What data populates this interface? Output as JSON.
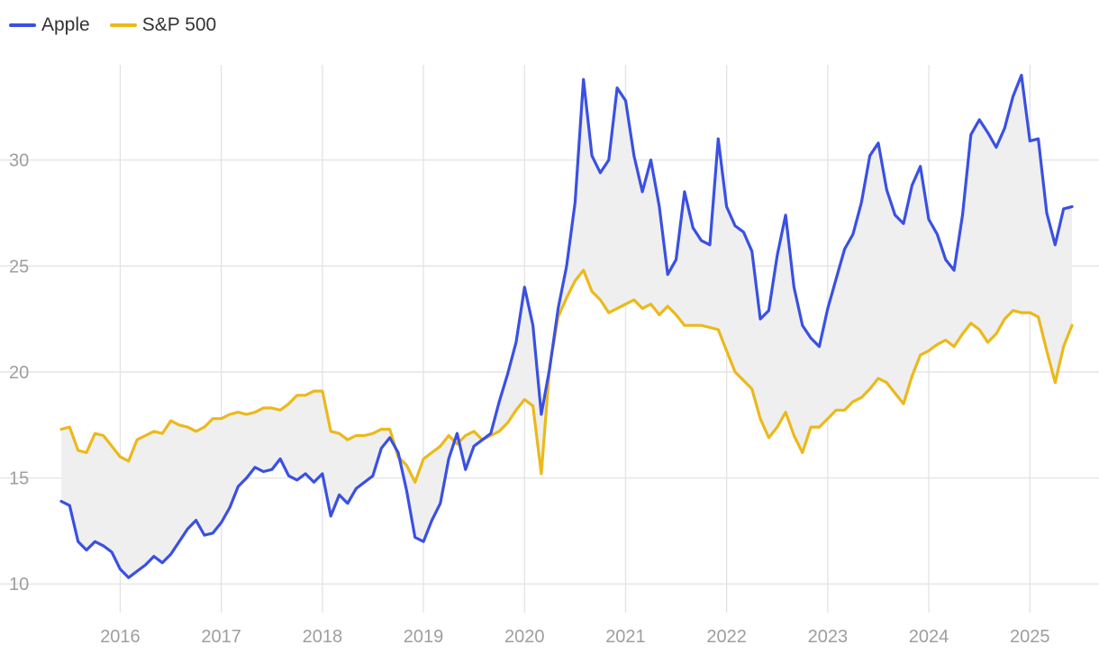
{
  "chart_data": {
    "type": "line",
    "title": "",
    "xlabel": "",
    "ylabel": "",
    "legend_position": "top-left",
    "grid": true,
    "x_ticks": [
      "2016",
      "2017",
      "2018",
      "2019",
      "2020",
      "2021",
      "2022",
      "2023",
      "2024",
      "2025"
    ],
    "y_ticks": [
      10,
      15,
      20,
      25,
      30
    ],
    "xlim": [
      "2015-06",
      "2025-06"
    ],
    "ylim": [
      9.5,
      35
    ],
    "fill_between_series": true,
    "fill_color": "#efefef",
    "series": [
      {
        "name": "Apple",
        "color": "#3a50e3",
        "points": [
          [
            "2015-06",
            13.9
          ],
          [
            "2015-07",
            13.7
          ],
          [
            "2015-08",
            12.0
          ],
          [
            "2015-09",
            11.6
          ],
          [
            "2015-10",
            12.0
          ],
          [
            "2015-11",
            11.8
          ],
          [
            "2015-12",
            11.5
          ],
          [
            "2016-01",
            10.7
          ],
          [
            "2016-02",
            10.3
          ],
          [
            "2016-03",
            10.6
          ],
          [
            "2016-04",
            10.9
          ],
          [
            "2016-05",
            11.3
          ],
          [
            "2016-06",
            11.0
          ],
          [
            "2016-07",
            11.4
          ],
          [
            "2016-08",
            12.0
          ],
          [
            "2016-09",
            12.6
          ],
          [
            "2016-10",
            13.0
          ],
          [
            "2016-11",
            12.3
          ],
          [
            "2016-12",
            12.4
          ],
          [
            "2017-01",
            12.9
          ],
          [
            "2017-02",
            13.6
          ],
          [
            "2017-03",
            14.6
          ],
          [
            "2017-04",
            15.0
          ],
          [
            "2017-05",
            15.5
          ],
          [
            "2017-06",
            15.3
          ],
          [
            "2017-07",
            15.4
          ],
          [
            "2017-08",
            15.9
          ],
          [
            "2017-09",
            15.1
          ],
          [
            "2017-10",
            14.9
          ],
          [
            "2017-11",
            15.2
          ],
          [
            "2017-12",
            14.8
          ],
          [
            "2018-01",
            15.2
          ],
          [
            "2018-02",
            13.2
          ],
          [
            "2018-03",
            14.2
          ],
          [
            "2018-04",
            13.8
          ],
          [
            "2018-05",
            14.5
          ],
          [
            "2018-06",
            14.8
          ],
          [
            "2018-07",
            15.1
          ],
          [
            "2018-08",
            16.4
          ],
          [
            "2018-09",
            16.9
          ],
          [
            "2018-10",
            16.2
          ],
          [
            "2018-11",
            14.4
          ],
          [
            "2018-12",
            12.2
          ],
          [
            "2019-01",
            12.0
          ],
          [
            "2019-02",
            13.0
          ],
          [
            "2019-03",
            13.8
          ],
          [
            "2019-04",
            15.9
          ],
          [
            "2019-05",
            17.1
          ],
          [
            "2019-06",
            15.4
          ],
          [
            "2019-07",
            16.5
          ],
          [
            "2019-08",
            16.8
          ],
          [
            "2019-09",
            17.1
          ],
          [
            "2019-10",
            18.6
          ],
          [
            "2019-11",
            19.9
          ],
          [
            "2019-12",
            21.4
          ],
          [
            "2020-01",
            24.0
          ],
          [
            "2020-02",
            22.2
          ],
          [
            "2020-03",
            18.0
          ],
          [
            "2020-04",
            20.2
          ],
          [
            "2020-05",
            23.0
          ],
          [
            "2020-06",
            25.0
          ],
          [
            "2020-07",
            28.0
          ],
          [
            "2020-08",
            33.8
          ],
          [
            "2020-09",
            30.2
          ],
          [
            "2020-10",
            29.4
          ],
          [
            "2020-11",
            30.0
          ],
          [
            "2020-12",
            33.4
          ],
          [
            "2021-01",
            32.8
          ],
          [
            "2021-02",
            30.2
          ],
          [
            "2021-03",
            28.5
          ],
          [
            "2021-04",
            30.0
          ],
          [
            "2021-05",
            27.8
          ],
          [
            "2021-06",
            24.6
          ],
          [
            "2021-07",
            25.3
          ],
          [
            "2021-08",
            28.5
          ],
          [
            "2021-09",
            26.8
          ],
          [
            "2021-10",
            26.2
          ],
          [
            "2021-11",
            26.0
          ],
          [
            "2021-12",
            31.0
          ],
          [
            "2022-01",
            27.8
          ],
          [
            "2022-02",
            26.9
          ],
          [
            "2022-03",
            26.6
          ],
          [
            "2022-04",
            25.7
          ],
          [
            "2022-05",
            22.5
          ],
          [
            "2022-06",
            22.9
          ],
          [
            "2022-07",
            25.5
          ],
          [
            "2022-08",
            27.4
          ],
          [
            "2022-09",
            24.0
          ],
          [
            "2022-10",
            22.2
          ],
          [
            "2022-11",
            21.6
          ],
          [
            "2022-12",
            21.2
          ],
          [
            "2023-01",
            23.0
          ],
          [
            "2023-02",
            24.4
          ],
          [
            "2023-03",
            25.8
          ],
          [
            "2023-04",
            26.5
          ],
          [
            "2023-05",
            28.0
          ],
          [
            "2023-06",
            30.2
          ],
          [
            "2023-07",
            30.8
          ],
          [
            "2023-08",
            28.6
          ],
          [
            "2023-09",
            27.4
          ],
          [
            "2023-10",
            27.0
          ],
          [
            "2023-11",
            28.8
          ],
          [
            "2023-12",
            29.7
          ],
          [
            "2024-01",
            27.2
          ],
          [
            "2024-02",
            26.5
          ],
          [
            "2024-03",
            25.3
          ],
          [
            "2024-04",
            24.8
          ],
          [
            "2024-05",
            27.4
          ],
          [
            "2024-06",
            31.2
          ],
          [
            "2024-07",
            31.9
          ],
          [
            "2024-08",
            31.3
          ],
          [
            "2024-09",
            30.6
          ],
          [
            "2024-10",
            31.5
          ],
          [
            "2024-11",
            33.0
          ],
          [
            "2024-12",
            34.0
          ],
          [
            "2025-01",
            30.9
          ],
          [
            "2025-02",
            31.0
          ],
          [
            "2025-03",
            27.5
          ],
          [
            "2025-04",
            26.0
          ],
          [
            "2025-05",
            27.7
          ],
          [
            "2025-06",
            27.8
          ]
        ]
      },
      {
        "name": "S&P 500",
        "color": "#ebb91b",
        "points": [
          [
            "2015-06",
            17.3
          ],
          [
            "2015-07",
            17.4
          ],
          [
            "2015-08",
            16.3
          ],
          [
            "2015-09",
            16.2
          ],
          [
            "2015-10",
            17.1
          ],
          [
            "2015-11",
            17.0
          ],
          [
            "2015-12",
            16.5
          ],
          [
            "2016-01",
            16.0
          ],
          [
            "2016-02",
            15.8
          ],
          [
            "2016-03",
            16.8
          ],
          [
            "2016-04",
            17.0
          ],
          [
            "2016-05",
            17.2
          ],
          [
            "2016-06",
            17.1
          ],
          [
            "2016-07",
            17.7
          ],
          [
            "2016-08",
            17.5
          ],
          [
            "2016-09",
            17.4
          ],
          [
            "2016-10",
            17.2
          ],
          [
            "2016-11",
            17.4
          ],
          [
            "2016-12",
            17.8
          ],
          [
            "2017-01",
            17.8
          ],
          [
            "2017-02",
            18.0
          ],
          [
            "2017-03",
            18.1
          ],
          [
            "2017-04",
            18.0
          ],
          [
            "2017-05",
            18.1
          ],
          [
            "2017-06",
            18.3
          ],
          [
            "2017-07",
            18.3
          ],
          [
            "2017-08",
            18.2
          ],
          [
            "2017-09",
            18.5
          ],
          [
            "2017-10",
            18.9
          ],
          [
            "2017-11",
            18.9
          ],
          [
            "2017-12",
            19.1
          ],
          [
            "2018-01",
            19.1
          ],
          [
            "2018-02",
            17.2
          ],
          [
            "2018-03",
            17.1
          ],
          [
            "2018-04",
            16.8
          ],
          [
            "2018-05",
            17.0
          ],
          [
            "2018-06",
            17.0
          ],
          [
            "2018-07",
            17.1
          ],
          [
            "2018-08",
            17.3
          ],
          [
            "2018-09",
            17.3
          ],
          [
            "2018-10",
            16.0
          ],
          [
            "2018-11",
            15.6
          ],
          [
            "2018-12",
            14.8
          ],
          [
            "2019-01",
            15.9
          ],
          [
            "2019-02",
            16.2
          ],
          [
            "2019-03",
            16.5
          ],
          [
            "2019-04",
            17.0
          ],
          [
            "2019-05",
            16.6
          ],
          [
            "2019-06",
            17.0
          ],
          [
            "2019-07",
            17.2
          ],
          [
            "2019-08",
            16.8
          ],
          [
            "2019-09",
            17.0
          ],
          [
            "2019-10",
            17.2
          ],
          [
            "2019-11",
            17.6
          ],
          [
            "2019-12",
            18.2
          ],
          [
            "2020-01",
            18.7
          ],
          [
            "2020-02",
            18.4
          ],
          [
            "2020-03",
            15.2
          ],
          [
            "2020-04",
            20.3
          ],
          [
            "2020-05",
            22.6
          ],
          [
            "2020-06",
            23.5
          ],
          [
            "2020-07",
            24.3
          ],
          [
            "2020-08",
            24.8
          ],
          [
            "2020-09",
            23.8
          ],
          [
            "2020-10",
            23.4
          ],
          [
            "2020-11",
            22.8
          ],
          [
            "2020-12",
            23.0
          ],
          [
            "2021-01",
            23.2
          ],
          [
            "2021-02",
            23.4
          ],
          [
            "2021-03",
            23.0
          ],
          [
            "2021-04",
            23.2
          ],
          [
            "2021-05",
            22.7
          ],
          [
            "2021-06",
            23.1
          ],
          [
            "2021-07",
            22.7
          ],
          [
            "2021-08",
            22.2
          ],
          [
            "2021-09",
            22.2
          ],
          [
            "2021-10",
            22.2
          ],
          [
            "2021-11",
            22.1
          ],
          [
            "2021-12",
            22.0
          ],
          [
            "2022-01",
            21.0
          ],
          [
            "2022-02",
            20.0
          ],
          [
            "2022-03",
            19.6
          ],
          [
            "2022-04",
            19.2
          ],
          [
            "2022-05",
            17.8
          ],
          [
            "2022-06",
            16.9
          ],
          [
            "2022-07",
            17.4
          ],
          [
            "2022-08",
            18.1
          ],
          [
            "2022-09",
            17.0
          ],
          [
            "2022-10",
            16.2
          ],
          [
            "2022-11",
            17.4
          ],
          [
            "2022-12",
            17.4
          ],
          [
            "2023-01",
            17.8
          ],
          [
            "2023-02",
            18.2
          ],
          [
            "2023-03",
            18.2
          ],
          [
            "2023-04",
            18.6
          ],
          [
            "2023-05",
            18.8
          ],
          [
            "2023-06",
            19.2
          ],
          [
            "2023-07",
            19.7
          ],
          [
            "2023-08",
            19.5
          ],
          [
            "2023-09",
            19.0
          ],
          [
            "2023-10",
            18.5
          ],
          [
            "2023-11",
            19.8
          ],
          [
            "2023-12",
            20.8
          ],
          [
            "2024-01",
            21.0
          ],
          [
            "2024-02",
            21.3
          ],
          [
            "2024-03",
            21.5
          ],
          [
            "2024-04",
            21.2
          ],
          [
            "2024-05",
            21.8
          ],
          [
            "2024-06",
            22.3
          ],
          [
            "2024-07",
            22.0
          ],
          [
            "2024-08",
            21.4
          ],
          [
            "2024-09",
            21.8
          ],
          [
            "2024-10",
            22.5
          ],
          [
            "2024-11",
            22.9
          ],
          [
            "2024-12",
            22.8
          ],
          [
            "2025-01",
            22.8
          ],
          [
            "2025-02",
            22.6
          ],
          [
            "2025-03",
            21.0
          ],
          [
            "2025-04",
            19.5
          ],
          [
            "2025-05",
            21.2
          ],
          [
            "2025-06",
            22.2
          ]
        ]
      }
    ]
  }
}
